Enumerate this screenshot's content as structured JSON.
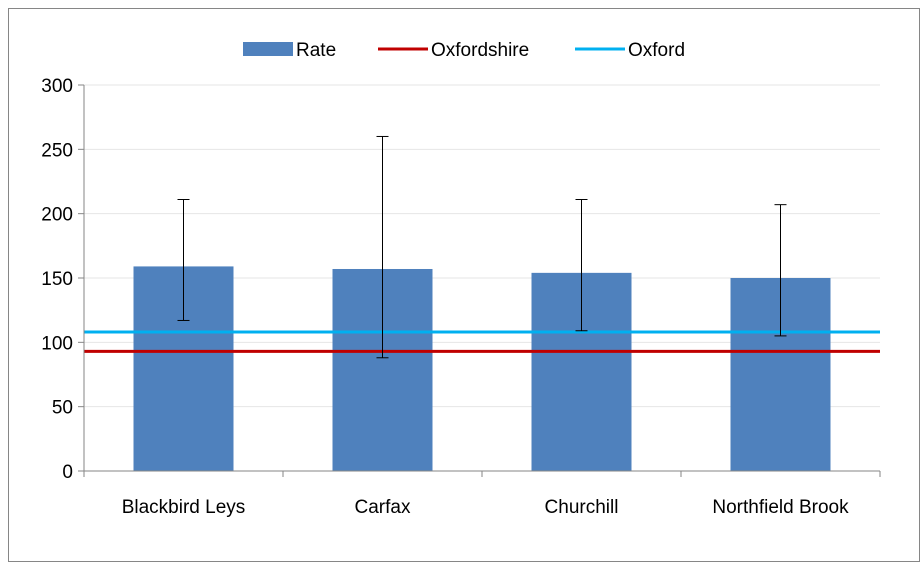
{
  "chart_data": {
    "type": "bar",
    "categories": [
      "Blackbird Leys",
      "Carfax",
      "Churchill",
      "Northfield Brook"
    ],
    "series": [
      {
        "name": "Rate",
        "values": [
          159,
          157,
          154,
          150
        ],
        "error_low": [
          117,
          88,
          109,
          105
        ],
        "error_high": [
          211,
          260,
          211,
          207
        ]
      }
    ],
    "reference_lines": [
      {
        "name": "Oxfordshire",
        "value": 93
      },
      {
        "name": "Oxford",
        "value": 108
      }
    ],
    "ylim": [
      0,
      300
    ],
    "yticks": [
      "0",
      "50",
      "100",
      "150",
      "200",
      "250",
      "300"
    ],
    "grid": true,
    "legend_position": "top",
    "colors": {
      "bar": "#4F81BD",
      "oxfordshire": "#C00000",
      "oxford": "#00B0F0",
      "grid": "#E6E6E6",
      "axis": "#868686"
    },
    "legend": [
      {
        "name": "Rate",
        "kind": "bar"
      },
      {
        "name": "Oxfordshire",
        "kind": "line"
      },
      {
        "name": "Oxford",
        "kind": "line"
      }
    ]
  }
}
